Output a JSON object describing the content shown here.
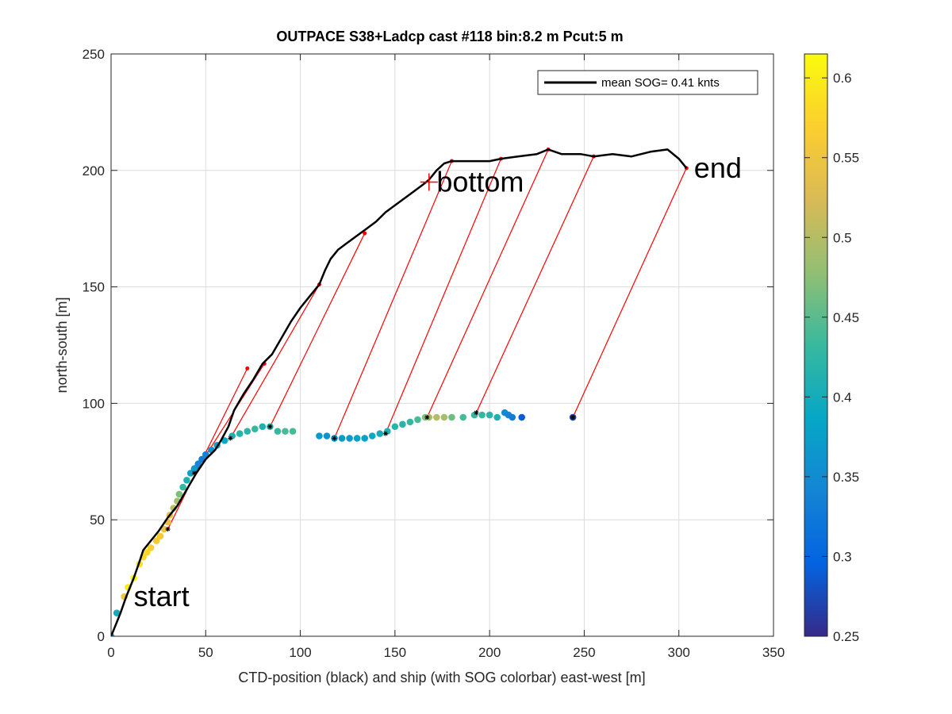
{
  "chart_data": {
    "type": "scatter",
    "title": "OUTPACE S38+Ladcp cast #118 bin:8.2 m  Pcut:5 m",
    "xlabel": "CTD-position (black) and ship (with SOG colorbar) east-west [m]",
    "ylabel": "north-south [m]",
    "xlim": [
      0,
      350
    ],
    "ylim": [
      0,
      250
    ],
    "xticks": [
      0,
      50,
      100,
      150,
      200,
      250,
      300,
      350
    ],
    "yticks": [
      0,
      50,
      100,
      150,
      200,
      250
    ],
    "grid": true,
    "legend": {
      "entry": "mean SOG=  0.41 knts",
      "placement": "top-right"
    },
    "colorbar": {
      "label": "",
      "range": [
        0.25,
        0.615
      ],
      "ticks": [
        0.25,
        0.3,
        0.35,
        0.4,
        0.45,
        0.5,
        0.55,
        0.6
      ]
    },
    "annotations": [
      {
        "text": "start",
        "x": 12,
        "y": 17
      },
      {
        "text": "bottom",
        "x": 172,
        "y": 195
      },
      {
        "text": "end",
        "x": 308,
        "y": 201
      }
    ],
    "bottom_marker": {
      "x": 168,
      "y": 195
    },
    "ctd_track": [
      [
        0,
        0
      ],
      [
        2,
        4
      ],
      [
        5,
        10
      ],
      [
        8,
        17
      ],
      [
        12,
        25
      ],
      [
        15,
        32
      ],
      [
        17,
        37
      ],
      [
        20,
        40
      ],
      [
        25,
        45
      ],
      [
        30,
        51
      ],
      [
        35,
        56
      ],
      [
        40,
        63
      ],
      [
        45,
        70
      ],
      [
        50,
        76
      ],
      [
        55,
        80
      ],
      [
        58,
        84
      ],
      [
        62,
        90
      ],
      [
        65,
        97
      ],
      [
        70,
        104
      ],
      [
        75,
        110
      ],
      [
        80,
        117
      ],
      [
        85,
        121
      ],
      [
        90,
        128
      ],
      [
        95,
        135
      ],
      [
        100,
        141
      ],
      [
        105,
        146
      ],
      [
        110,
        151
      ],
      [
        113,
        157
      ],
      [
        116,
        162
      ],
      [
        120,
        166
      ],
      [
        125,
        169
      ],
      [
        130,
        172
      ],
      [
        135,
        175
      ],
      [
        140,
        178
      ],
      [
        145,
        182
      ],
      [
        150,
        185
      ],
      [
        155,
        188
      ],
      [
        160,
        191
      ],
      [
        165,
        194
      ],
      [
        168,
        196
      ],
      [
        172,
        200
      ],
      [
        176,
        203
      ],
      [
        180,
        204
      ],
      [
        190,
        204
      ],
      [
        200,
        204
      ],
      [
        206,
        205
      ],
      [
        215,
        206
      ],
      [
        225,
        207
      ],
      [
        231,
        209
      ],
      [
        238,
        207
      ],
      [
        248,
        207
      ],
      [
        255,
        206
      ],
      [
        265,
        207
      ],
      [
        275,
        206
      ],
      [
        285,
        208
      ],
      [
        294,
        209
      ],
      [
        300,
        205
      ],
      [
        304,
        201
      ]
    ],
    "ship_points": [
      [
        0,
        0,
        0.39
      ],
      [
        3,
        10,
        0.4
      ],
      [
        7,
        17,
        0.55
      ],
      [
        9,
        21,
        0.6
      ],
      [
        12,
        25,
        0.61
      ],
      [
        15,
        31,
        0.59
      ],
      [
        17,
        34,
        0.58
      ],
      [
        19,
        36,
        0.58
      ],
      [
        21,
        38,
        0.57
      ],
      [
        24,
        41,
        0.56
      ],
      [
        26,
        43,
        0.56
      ],
      [
        28,
        46,
        0.55
      ],
      [
        30,
        49,
        0.54
      ],
      [
        31,
        52,
        0.54
      ],
      [
        33,
        55,
        0.5
      ],
      [
        35,
        58,
        0.49
      ],
      [
        36,
        61,
        0.47
      ],
      [
        38,
        64,
        0.43
      ],
      [
        40,
        67,
        0.41
      ],
      [
        42,
        70,
        0.38
      ],
      [
        44,
        72,
        0.37
      ],
      [
        46,
        74,
        0.34
      ],
      [
        48,
        76,
        0.33
      ],
      [
        50,
        78,
        0.34
      ],
      [
        53,
        80,
        0.36
      ],
      [
        56,
        82,
        0.38
      ],
      [
        60,
        84,
        0.39
      ],
      [
        64,
        86,
        0.41
      ],
      [
        68,
        87,
        0.42
      ],
      [
        72,
        88,
        0.42
      ],
      [
        76,
        89,
        0.43
      ],
      [
        80,
        90,
        0.41
      ],
      [
        84,
        90,
        0.42
      ],
      [
        88,
        88,
        0.43
      ],
      [
        92,
        88,
        0.44
      ],
      [
        96,
        88,
        0.44
      ],
      [
        110,
        86,
        0.37
      ],
      [
        114,
        86,
        0.36
      ],
      [
        118,
        85,
        0.36
      ],
      [
        122,
        85,
        0.37
      ],
      [
        126,
        85,
        0.37
      ],
      [
        130,
        85,
        0.38
      ],
      [
        134,
        85,
        0.38
      ],
      [
        138,
        86,
        0.39
      ],
      [
        142,
        87,
        0.4
      ],
      [
        146,
        88,
        0.41
      ],
      [
        150,
        90,
        0.42
      ],
      [
        154,
        91,
        0.42
      ],
      [
        158,
        92,
        0.43
      ],
      [
        162,
        93,
        0.44
      ],
      [
        166,
        94,
        0.47
      ],
      [
        168,
        94,
        0.49
      ],
      [
        172,
        94,
        0.5
      ],
      [
        176,
        94,
        0.49
      ],
      [
        180,
        94,
        0.46
      ],
      [
        186,
        94,
        0.44
      ],
      [
        192,
        95,
        0.43
      ],
      [
        196,
        95,
        0.43
      ],
      [
        200,
        95,
        0.42
      ],
      [
        204,
        94,
        0.41
      ],
      [
        208,
        96,
        0.35
      ],
      [
        210,
        95,
        0.34
      ],
      [
        212,
        94,
        0.33
      ],
      [
        217,
        94,
        0.29
      ],
      [
        244,
        94,
        0.27
      ]
    ],
    "connector_lines": [
      [
        [
          30,
          46
        ],
        [
          72,
          115
        ]
      ],
      [
        [
          44,
          70
        ],
        [
          81,
          117
        ]
      ],
      [
        [
          63,
          85
        ],
        [
          110,
          151
        ]
      ],
      [
        [
          84,
          90
        ],
        [
          134,
          173
        ]
      ],
      [
        [
          118,
          85
        ],
        [
          180,
          204
        ]
      ],
      [
        [
          145,
          87
        ],
        [
          206,
          205
        ]
      ],
      [
        [
          167,
          94
        ],
        [
          231,
          209
        ]
      ],
      [
        [
          193,
          96
        ],
        [
          255,
          206
        ]
      ],
      [
        [
          244,
          94
        ],
        [
          304,
          201
        ]
      ]
    ]
  }
}
